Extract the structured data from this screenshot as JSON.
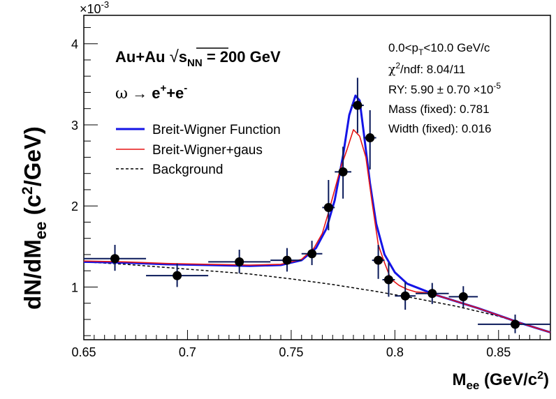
{
  "chart_data": {
    "type": "scatter",
    "xlabel": "M",
    "xlabel_sub": "ee",
    "xlabel_unit_open": " (GeV/c",
    "xlabel_unit_sup": "2",
    "xlabel_unit_close": ")",
    "ylabel": "dN/dM",
    "ylabel_sub": "ee",
    "ylabel_unit_open": " (c",
    "ylabel_unit_sup": "2",
    "ylabel_unit_close": "/GeV)",
    "xlim": [
      0.65,
      0.875
    ],
    "ylim": [
      0.35,
      4.35
    ],
    "y_multiplier_base": "×10",
    "y_multiplier_exp": "-3",
    "x_ticks": [
      {
        "value": 0.65,
        "label": "0.65"
      },
      {
        "value": 0.7,
        "label": "0.7"
      },
      {
        "value": 0.75,
        "label": "0.75"
      },
      {
        "value": 0.8,
        "label": "0.8"
      },
      {
        "value": 0.85,
        "label": "0.85"
      }
    ],
    "y_ticks": [
      {
        "value": 1,
        "label": "1"
      },
      {
        "value": 2,
        "label": "2"
      },
      {
        "value": 3,
        "label": "3"
      },
      {
        "value": 4,
        "label": "4"
      }
    ],
    "grid": false,
    "annotations": {
      "collision_a": "Au+Au ",
      "collision_sqrt": "√",
      "collision_s": "s",
      "collision_sub": "NN",
      "collision_b": " = 200 GeV",
      "decay_omega": "ω",
      "decay_arrow": " → ",
      "decay_e1": "e",
      "decay_e1_sup": "+",
      "decay_plus": "+e",
      "decay_e2_sup": "-"
    },
    "stats": {
      "pt_a": "0.0<p",
      "pt_sub": "T",
      "pt_b": "<10.0 GeV/c",
      "chi_a": "χ",
      "chi_sup": "2",
      "chi_b": "/ndf:  8.04/11",
      "ry_a": "RY:  5.90 ± 0.70 ×10",
      "ry_sup": "-5",
      "mass": "Mass (fixed):  0.781",
      "width": "Width (fixed):  0.016"
    },
    "legend": {
      "position": "upper-left",
      "entries": [
        {
          "label": "Breit-Wigner Function",
          "color": "#1414e6",
          "style": "solid"
        },
        {
          "label": "Breit-Wigner+gaus",
          "color": "#e61414",
          "style": "solid"
        },
        {
          "label": "Background",
          "color": "#000000",
          "style": "dashed"
        }
      ]
    },
    "points": [
      {
        "x": 0.665,
        "y": 1.35,
        "xlo": 0.65,
        "xhi": 0.68,
        "ylo": 1.2,
        "yhi": 1.52
      },
      {
        "x": 0.695,
        "y": 1.14,
        "xlo": 0.68,
        "xhi": 0.71,
        "ylo": 1.0,
        "yhi": 1.29
      },
      {
        "x": 0.725,
        "y": 1.31,
        "xlo": 0.71,
        "xhi": 0.74,
        "ylo": 1.17,
        "yhi": 1.46
      },
      {
        "x": 0.748,
        "y": 1.33,
        "xlo": 0.74,
        "xhi": 0.755,
        "ylo": 1.19,
        "yhi": 1.48
      },
      {
        "x": 0.76,
        "y": 1.41,
        "xlo": 0.755,
        "xhi": 0.765,
        "ylo": 1.27,
        "yhi": 1.57
      },
      {
        "x": 0.768,
        "y": 1.98,
        "xlo": 0.765,
        "xhi": 0.771,
        "ylo": 1.7,
        "yhi": 2.32
      },
      {
        "x": 0.775,
        "y": 2.42,
        "xlo": 0.771,
        "xhi": 0.779,
        "ylo": 2.09,
        "yhi": 2.73
      },
      {
        "x": 0.782,
        "y": 3.24,
        "xlo": 0.779,
        "xhi": 0.785,
        "ylo": 2.9,
        "yhi": 3.58
      },
      {
        "x": 0.788,
        "y": 2.84,
        "xlo": 0.785,
        "xhi": 0.791,
        "ylo": 2.45,
        "yhi": 3.18
      },
      {
        "x": 0.792,
        "y": 1.33,
        "xlo": 0.789,
        "xhi": 0.795,
        "ylo": 1.1,
        "yhi": 1.52
      },
      {
        "x": 0.797,
        "y": 1.09,
        "xlo": 0.794,
        "xhi": 0.8,
        "ylo": 0.88,
        "yhi": 1.3
      },
      {
        "x": 0.805,
        "y": 0.89,
        "xlo": 0.8,
        "xhi": 0.81,
        "ylo": 0.72,
        "yhi": 1.06
      },
      {
        "x": 0.818,
        "y": 0.92,
        "xlo": 0.81,
        "xhi": 0.826,
        "ylo": 0.79,
        "yhi": 1.05
      },
      {
        "x": 0.833,
        "y": 0.88,
        "xlo": 0.826,
        "xhi": 0.84,
        "ylo": 0.75,
        "yhi": 1.01
      },
      {
        "x": 0.858,
        "y": 0.54,
        "xlo": 0.84,
        "xhi": 0.875,
        "ylo": 0.43,
        "yhi": 0.66
      }
    ],
    "series": [
      {
        "name": "Breit-Wigner Function",
        "color": "#1414e6",
        "x": [
          0.65,
          0.67,
          0.69,
          0.71,
          0.73,
          0.745,
          0.755,
          0.762,
          0.767,
          0.771,
          0.775,
          0.778,
          0.781,
          0.783,
          0.785,
          0.788,
          0.791,
          0.795,
          0.8,
          0.806,
          0.812,
          0.82,
          0.83,
          0.84,
          0.85,
          0.86,
          0.875
        ],
        "y": [
          1.31,
          1.3,
          1.28,
          1.27,
          1.26,
          1.27,
          1.33,
          1.48,
          1.72,
          2.07,
          2.62,
          3.12,
          3.36,
          3.3,
          2.9,
          2.28,
          1.78,
          1.4,
          1.18,
          1.04,
          0.98,
          0.9,
          0.82,
          0.74,
          0.65,
          0.56,
          0.44
        ]
      },
      {
        "name": "Breit-Wigner+gaus",
        "color": "#e61414",
        "x": [
          0.65,
          0.67,
          0.69,
          0.71,
          0.73,
          0.745,
          0.755,
          0.761,
          0.765,
          0.768,
          0.771,
          0.774,
          0.777,
          0.78,
          0.783,
          0.786,
          0.789,
          0.792,
          0.795,
          0.798,
          0.802,
          0.806,
          0.81,
          0.815,
          0.82,
          0.83,
          0.84,
          0.85,
          0.86,
          0.875
        ],
        "y": [
          1.32,
          1.31,
          1.29,
          1.28,
          1.27,
          1.28,
          1.34,
          1.48,
          1.66,
          1.92,
          2.2,
          2.48,
          2.7,
          2.94,
          2.86,
          2.6,
          2.04,
          1.52,
          1.3,
          1.1,
          1.02,
          0.97,
          0.94,
          0.93,
          0.9,
          0.82,
          0.74,
          0.65,
          0.56,
          0.44
        ]
      },
      {
        "name": "Background",
        "color": "#000000",
        "x": [
          0.65,
          0.67,
          0.69,
          0.71,
          0.73,
          0.75,
          0.77,
          0.79,
          0.81,
          0.83,
          0.85,
          0.875
        ],
        "y": [
          1.31,
          1.28,
          1.24,
          1.2,
          1.16,
          1.1,
          1.03,
          0.95,
          0.86,
          0.76,
          0.64,
          0.44
        ]
      }
    ]
  }
}
